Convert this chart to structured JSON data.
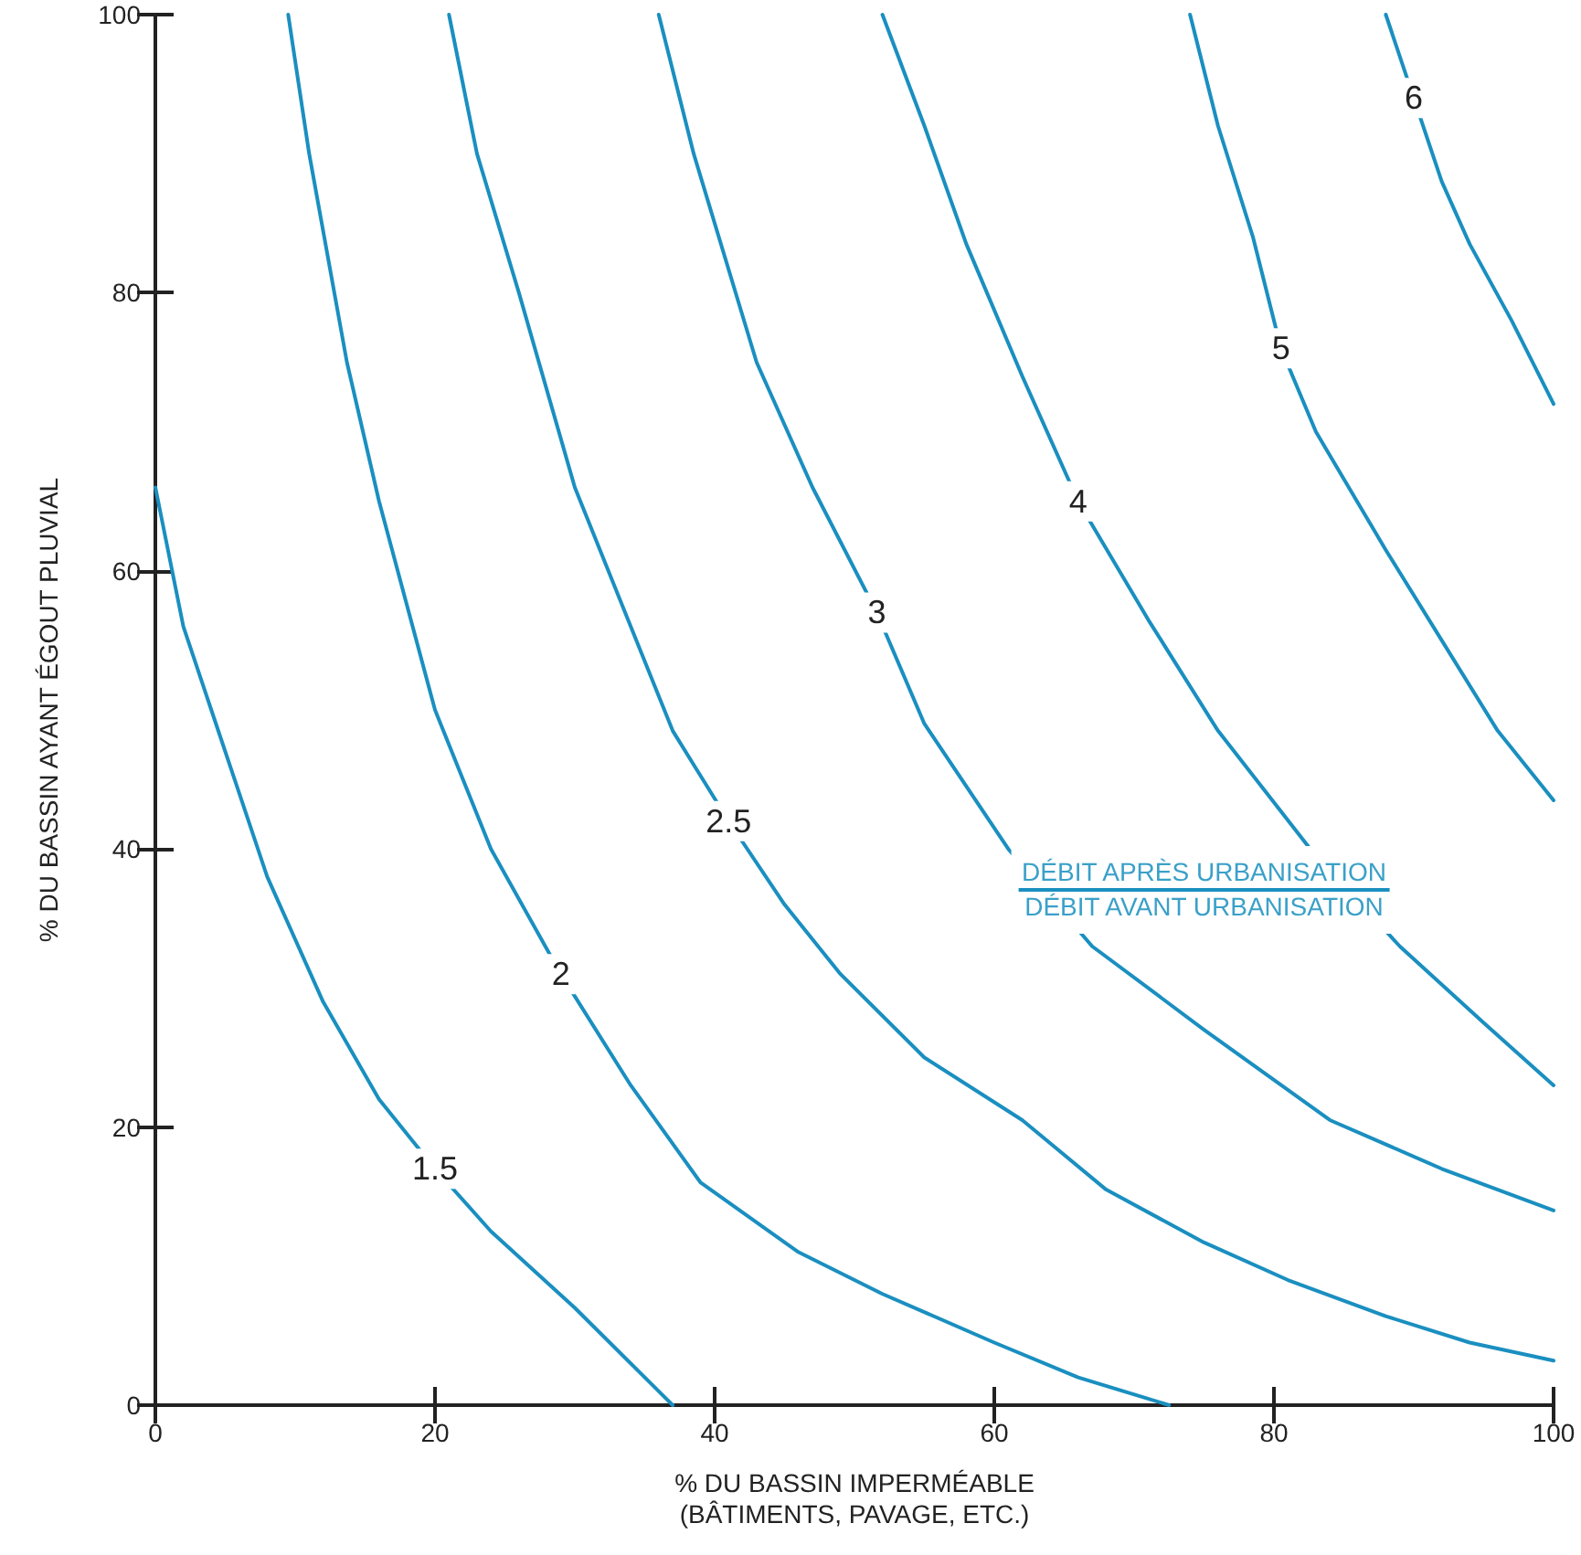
{
  "chart_data": {
    "type": "line",
    "xlabel": "% DU BASSIN IMPERMÉABLE\n(BÂTIMENTS, PAVAGE, ETC.)",
    "ylabel": "% DU BASSIN AYANT ÉGOUT PLUVIAL",
    "annotations": [
      "DÉBIT APRÈS URBANISATION",
      "DÉBIT AVANT URBANISATION"
    ],
    "xlim": [
      0,
      100
    ],
    "ylim": [
      0,
      100
    ],
    "xticks": [
      0,
      20,
      40,
      60,
      80,
      100
    ],
    "yticks": [
      0,
      20,
      40,
      60,
      80,
      100
    ],
    "grid": false,
    "legend": false,
    "marker": "none",
    "line_style": "solid",
    "series": [
      {
        "name": "1.5",
        "color": "#1a8fc0",
        "x": [
          0,
          2,
          4,
          8,
          12,
          16,
          20,
          24,
          30,
          37
        ],
        "values": [
          66,
          56,
          50,
          38,
          29,
          22,
          17,
          12.5,
          7,
          0
        ]
      },
      {
        "name": "2",
        "color": "#1a8fc0",
        "x": [
          9.5,
          11,
          13.7,
          16,
          20,
          24,
          29,
          34,
          39,
          46,
          52,
          60,
          66,
          72.5
        ],
        "values": [
          100,
          90,
          75,
          65,
          50,
          40,
          31,
          23,
          16,
          11,
          8,
          4.5,
          2,
          0
        ]
      },
      {
        "name": "2.5",
        "color": "#1a8fc0",
        "x": [
          21,
          23,
          26,
          30,
          34,
          37,
          41,
          45,
          49,
          55,
          62,
          68,
          75,
          81,
          88,
          94,
          100
        ],
        "values": [
          100,
          90,
          80,
          66,
          56,
          48.5,
          42,
          36,
          31,
          25,
          20.5,
          15.5,
          11.7,
          9,
          6.4,
          4.5,
          3.2
        ]
      },
      {
        "name": "3",
        "color": "#1a8fc0",
        "x": [
          36,
          38.5,
          43,
          47,
          51.6,
          55,
          61,
          67,
          75,
          84,
          92,
          100
        ],
        "values": [
          100,
          90,
          75,
          66,
          57,
          49,
          40,
          33,
          27,
          20.5,
          17,
          14
        ]
      },
      {
        "name": "4",
        "color": "#1a8fc0",
        "x": [
          52,
          55,
          58,
          62,
          66,
          71,
          76,
          82.6,
          89,
          95,
          100
        ],
        "values": [
          100,
          92,
          83.5,
          74,
          65,
          56.5,
          48.5,
          40,
          33,
          27.5,
          23
        ]
      },
      {
        "name": "5",
        "color": "#1a8fc0",
        "x": [
          74,
          76,
          78.5,
          80.5,
          83,
          88,
          92,
          96,
          100
        ],
        "values": [
          100,
          92,
          84,
          76,
          70,
          61.5,
          55,
          48.5,
          43.5
        ]
      },
      {
        "name": "6",
        "color": "#1a8fc0",
        "x": [
          88,
          90,
          92,
          94,
          97,
          100
        ],
        "values": [
          100,
          94,
          88,
          83.5,
          78,
          72
        ]
      }
    ]
  }
}
